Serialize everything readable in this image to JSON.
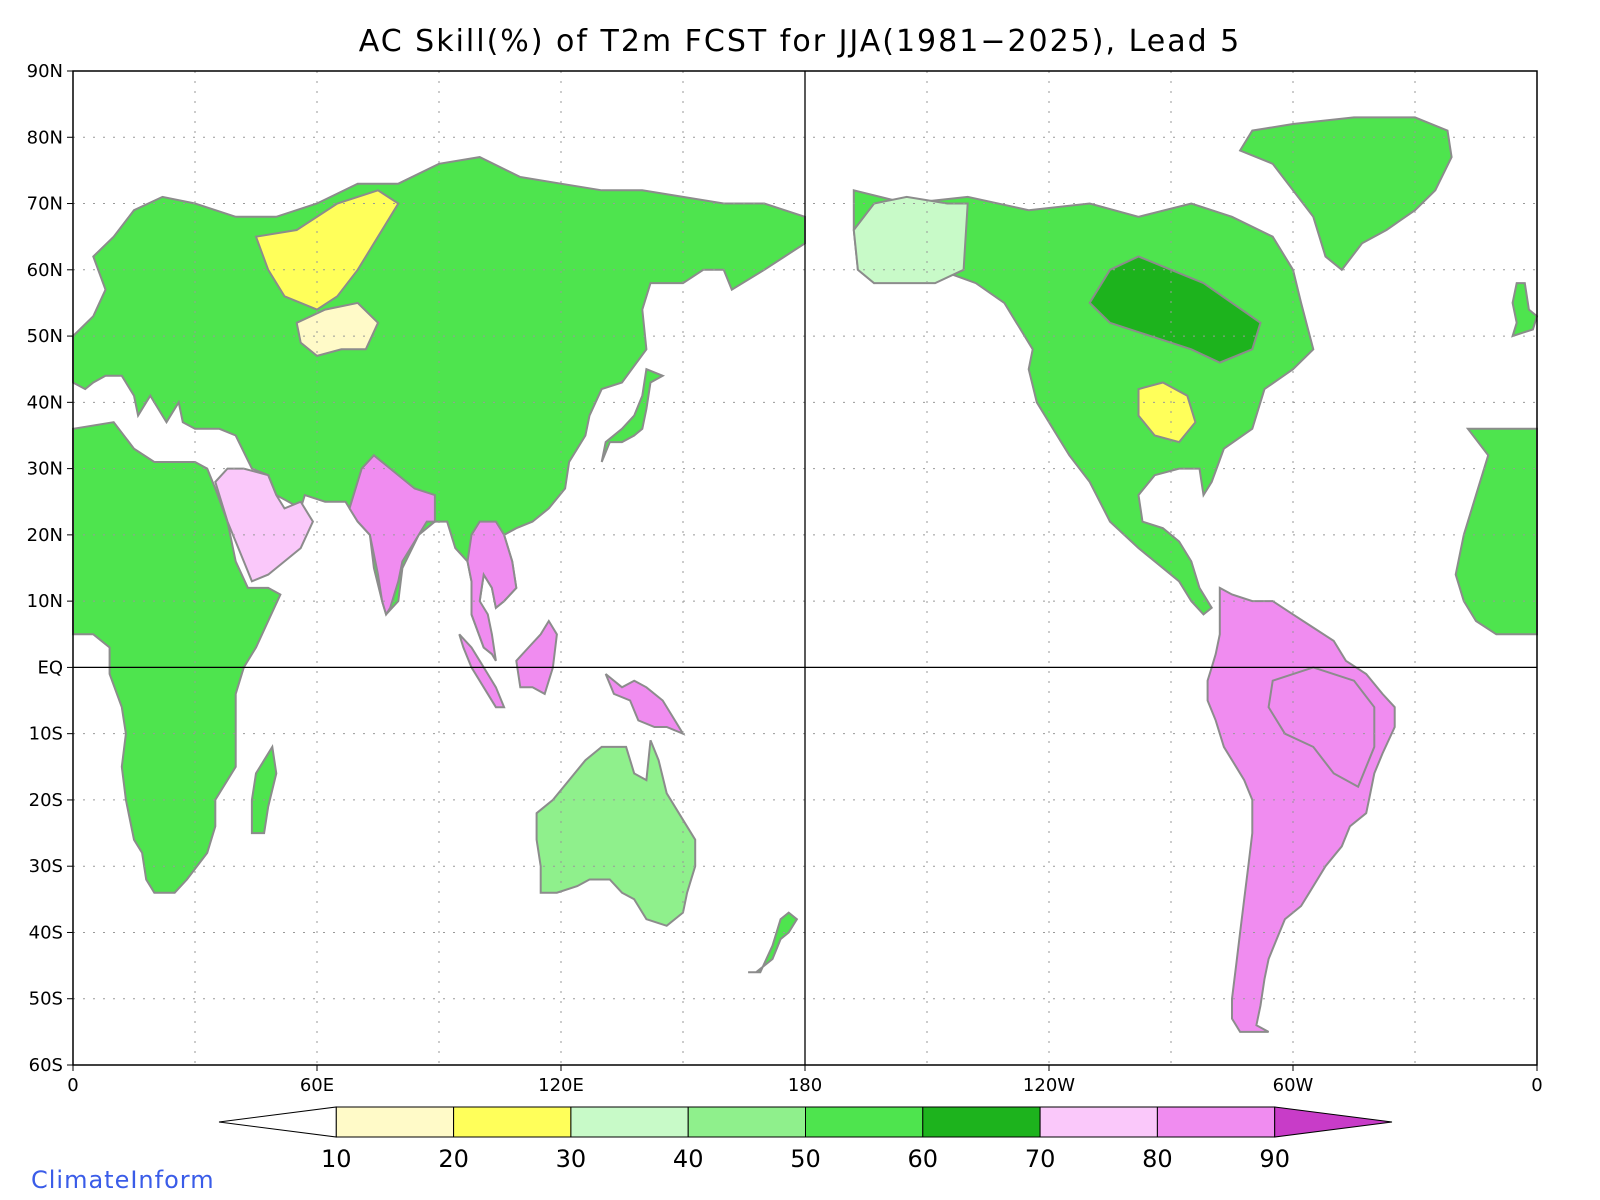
{
  "title": "AC Skill(%) of T2m FCST for JJA(1981−2025), Lead 5",
  "credit": "ClimateInform",
  "map": {
    "projection": "equirectangular",
    "lon_range": [
      0,
      360
    ],
    "lat_range": [
      -60,
      90
    ],
    "lat_ticks": [
      "90N",
      "80N",
      "70N",
      "60N",
      "50N",
      "40N",
      "30N",
      "20N",
      "10N",
      "EQ",
      "10S",
      "20S",
      "30S",
      "40S",
      "50S",
      "60S"
    ],
    "lon_ticks": [
      "0",
      "60E",
      "120E",
      "180",
      "120W",
      "60W",
      "0"
    ],
    "grid": "dotted",
    "coastline_color": "#8c8c8c",
    "lakes_border_color": "#000000"
  },
  "colorbar": {
    "levels": [
      "10",
      "20",
      "30",
      "40",
      "50",
      "60",
      "70",
      "80",
      "90"
    ],
    "colors": [
      "#ffffff",
      "#fffac8",
      "#ffff5a",
      "#c8fac8",
      "#8ff08c",
      "#4ee44e",
      "#1db31d",
      "#fac8fa",
      "#f08cf0",
      "#c83cc8"
    ]
  },
  "regions": [
    {
      "name": "north-america",
      "color": "#4ee44e"
    },
    {
      "name": "greenland",
      "color": "#4ee44e"
    },
    {
      "name": "south-america",
      "color": "#f08cf0"
    },
    {
      "name": "africa",
      "color": "#4ee44e"
    },
    {
      "name": "europe-asia",
      "color": "#4ee44e"
    },
    {
      "name": "arabia",
      "color": "#fac8fa"
    },
    {
      "name": "india",
      "color": "#f08cf0"
    },
    {
      "name": "indochina",
      "color": "#f08cf0"
    },
    {
      "name": "australia",
      "color": "#8ff08c"
    },
    {
      "name": "borneo",
      "color": "#f08cf0"
    },
    {
      "name": "sumatra",
      "color": "#f08cf0"
    },
    {
      "name": "new-guinea",
      "color": "#f08cf0"
    },
    {
      "name": "madagascar",
      "color": "#4ee44e"
    },
    {
      "name": "japan",
      "color": "#4ee44e"
    },
    {
      "name": "new-zealand",
      "color": "#4ee44e"
    },
    {
      "name": "alaska",
      "color": "#c8fac8"
    },
    {
      "name": "ireland-uk",
      "color": "#4ee44e"
    },
    {
      "name": "siberia-yellow",
      "color": "#ffff5a"
    },
    {
      "name": "kazakh-light",
      "color": "#fffac8"
    },
    {
      "name": "amazon",
      "color": "#f08cf0"
    },
    {
      "name": "canada-dark",
      "color": "#1db31d"
    },
    {
      "name": "us-midwest",
      "color": "#ffff5a"
    }
  ]
}
